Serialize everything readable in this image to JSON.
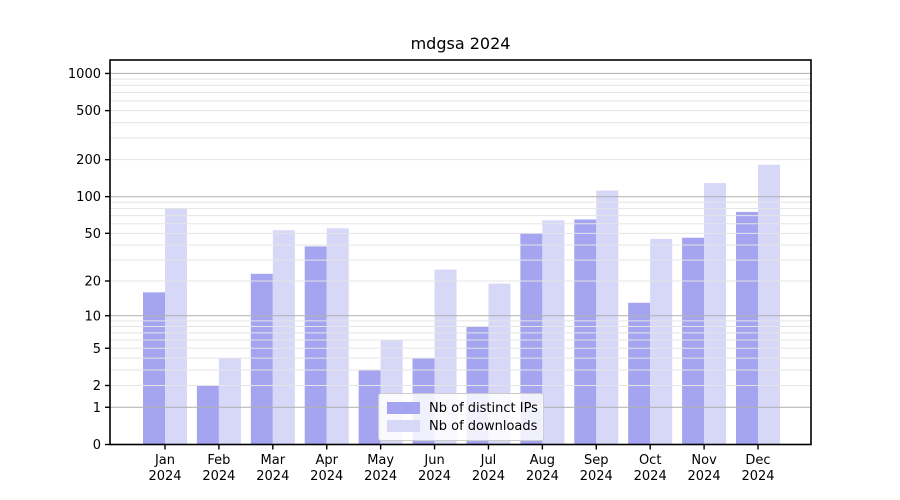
{
  "chart_data": {
    "type": "bar",
    "title": "mdgsa 2024",
    "categories": [
      "Jan",
      "Feb",
      "Mar",
      "Apr",
      "May",
      "Jun",
      "Jul",
      "Aug",
      "Sep",
      "Oct",
      "Nov",
      "Dec"
    ],
    "year": "2024",
    "series": [
      {
        "name": "Nb of distinct IPs",
        "color": "#a4a4f1",
        "values": [
          16,
          2,
          23,
          39,
          3,
          4,
          8,
          50,
          65,
          13,
          46,
          75
        ]
      },
      {
        "name": "Nb of downloads",
        "color": "#d7d7f8",
        "values": [
          80,
          4,
          53,
          55,
          6,
          25,
          19,
          64,
          112,
          45,
          129,
          182
        ]
      }
    ],
    "yticks": [
      0,
      1,
      2,
      5,
      10,
      20,
      50,
      100,
      200,
      500,
      1000
    ],
    "major_gridlines": [
      1,
      10,
      100,
      1000
    ],
    "minor_gridlines": [
      2,
      3,
      4,
      5,
      6,
      7,
      8,
      9,
      20,
      30,
      40,
      50,
      60,
      70,
      80,
      90,
      200,
      300,
      400,
      500,
      600,
      700,
      800,
      900
    ],
    "scale": "log1p",
    "ylim": [
      0,
      1285
    ],
    "grid": true,
    "legend_position": "bottom-center"
  },
  "colors": {
    "background": "#ffffff",
    "axis": "#000000",
    "major_grid": "#b0b0b0",
    "minor_grid": "#e5e5e5",
    "tick_text": "#000000"
  }
}
